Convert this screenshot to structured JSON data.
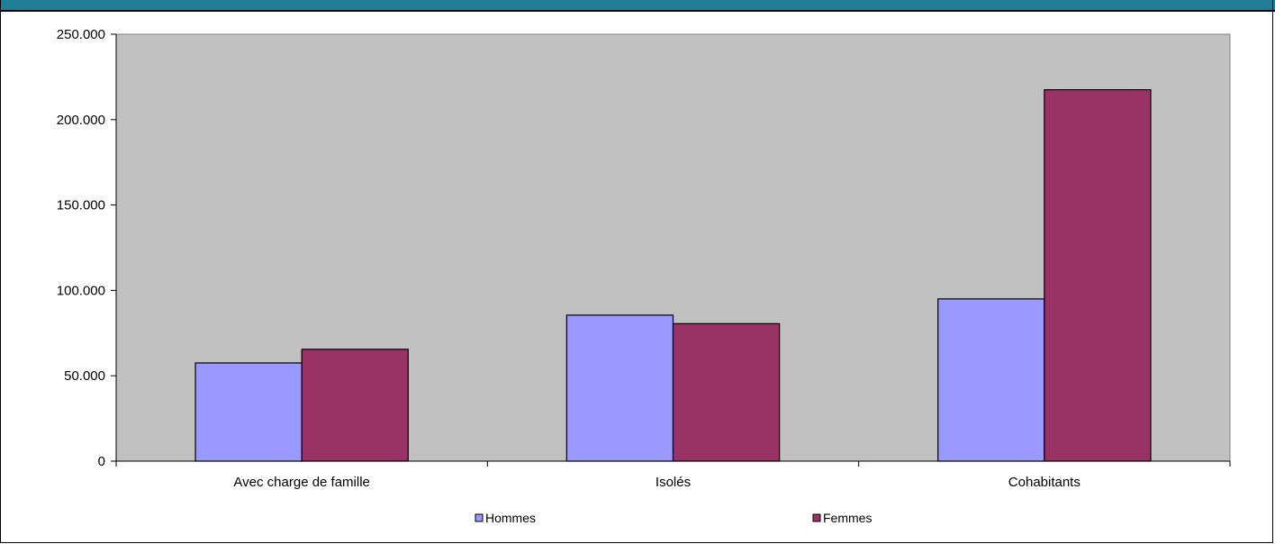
{
  "colors": {
    "topbar": "#1e7f97",
    "plot_bg": "#c0c0c0",
    "hommes": "#9999ff",
    "femmes": "#993366"
  },
  "chart_data": {
    "type": "bar",
    "categories": [
      "Avec charge de famille",
      "Isolés",
      "Cohabitants"
    ],
    "series": [
      {
        "name": "Hommes",
        "values": [
          57500,
          85500,
          95000
        ],
        "color": "#9999ff"
      },
      {
        "name": "Femmes",
        "values": [
          65500,
          80500,
          217500
        ],
        "color": "#993366"
      }
    ],
    "ylim": [
      0,
      250000
    ],
    "yticks": [
      0,
      50000,
      100000,
      150000,
      200000,
      250000
    ],
    "ytick_labels": [
      "0",
      "50.000",
      "100.000",
      "150.000",
      "200.000",
      "250.000"
    ],
    "grid": false,
    "legend_position": "bottom"
  }
}
